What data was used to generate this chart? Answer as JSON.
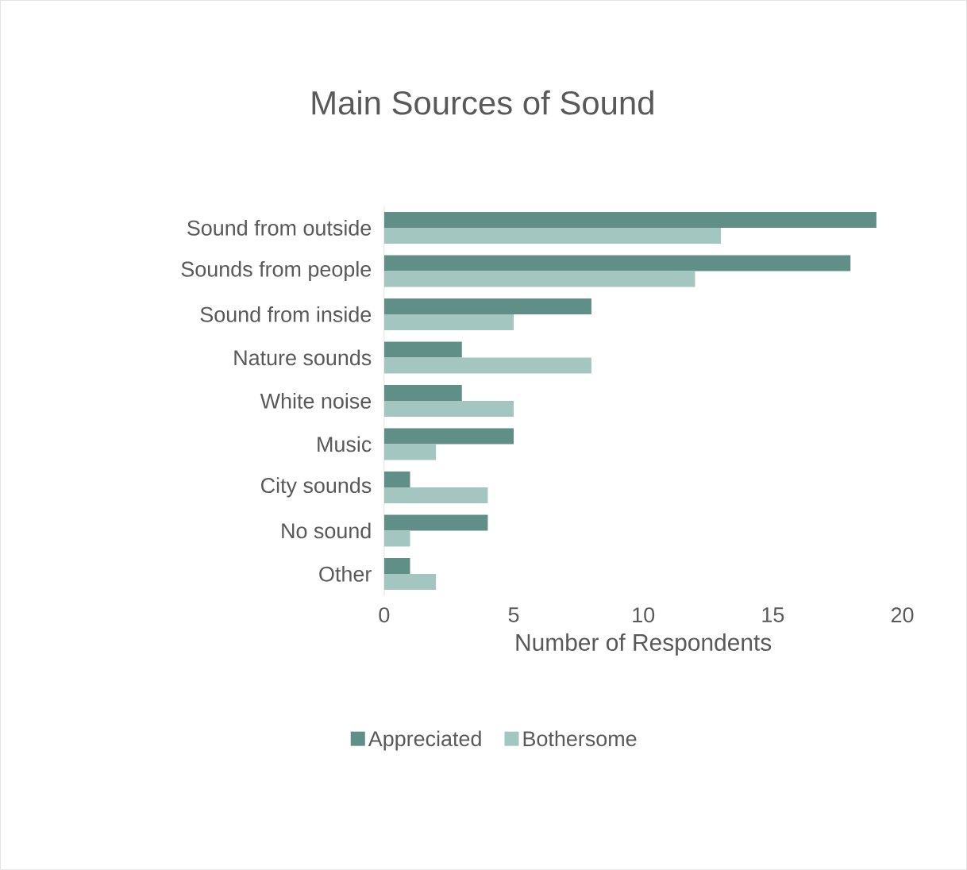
{
  "chart_data": {
    "type": "bar",
    "orientation": "horizontal",
    "title": "Main Sources of Sound",
    "xlabel": "Number of Respondents",
    "categories": [
      "Sound from outside",
      "Sounds from people",
      "Sound from inside",
      "Nature sounds",
      "White noise",
      "Music",
      "City sounds",
      "No sound",
      "Other"
    ],
    "series": [
      {
        "name": "Appreciated",
        "color": "#5f8f87",
        "values": [
          19,
          18,
          8,
          3,
          3,
          5,
          1,
          4,
          1
        ]
      },
      {
        "name": "Bothersome",
        "color": "#a3c7c0",
        "values": [
          13,
          12,
          5,
          8,
          5,
          2,
          4,
          1,
          2
        ]
      }
    ],
    "xlim": [
      0,
      20
    ],
    "xticks": [
      0,
      5,
      10,
      15,
      20
    ],
    "legend": "bottom"
  }
}
